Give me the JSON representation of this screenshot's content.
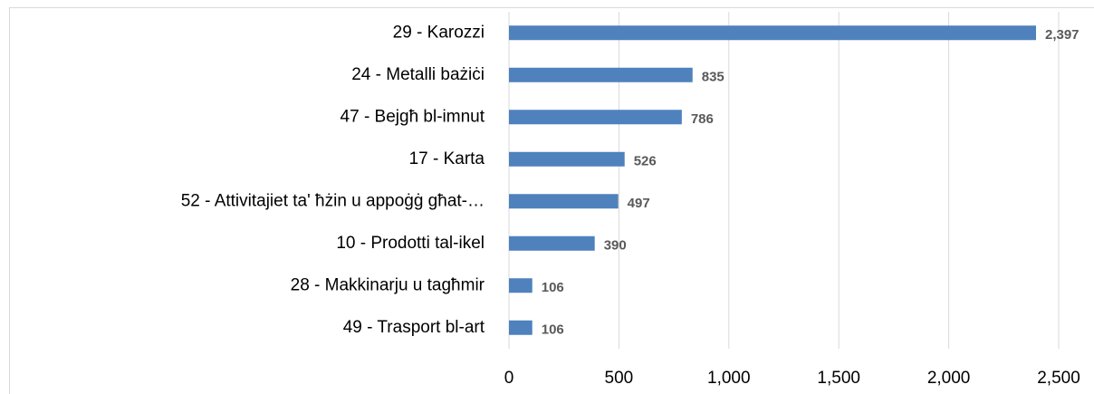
{
  "chart_data": {
    "type": "bar",
    "orientation": "horizontal",
    "categories": [
      "29 - Karozzi",
      "24 - Metalli bażiċi",
      "47 - Bejgħ bl-imnut",
      "17 - Karta",
      "52 - Attivitajiet ta' ħżin u appoġġ għat-…",
      "10 - Prodotti tal-ikel",
      "28 - Makkinarju u tagħmir",
      "49 - Trasport bl-art"
    ],
    "values": [
      2397,
      835,
      786,
      526,
      497,
      390,
      106,
      106
    ],
    "value_labels": [
      "2,397",
      "835",
      "786",
      "526",
      "497",
      "390",
      "106",
      "106"
    ],
    "color": "#4f81bd",
    "xlim": [
      0,
      2500
    ],
    "xticks": [
      0,
      500,
      {
        "value": 1000,
        "label": "1,000"
      },
      {
        "value": 1500,
        "label": "1,500"
      },
      {
        "value": 2000,
        "label": "2,000"
      },
      {
        "value": 2500,
        "label": "2,500"
      }
    ],
    "grid": true
  }
}
